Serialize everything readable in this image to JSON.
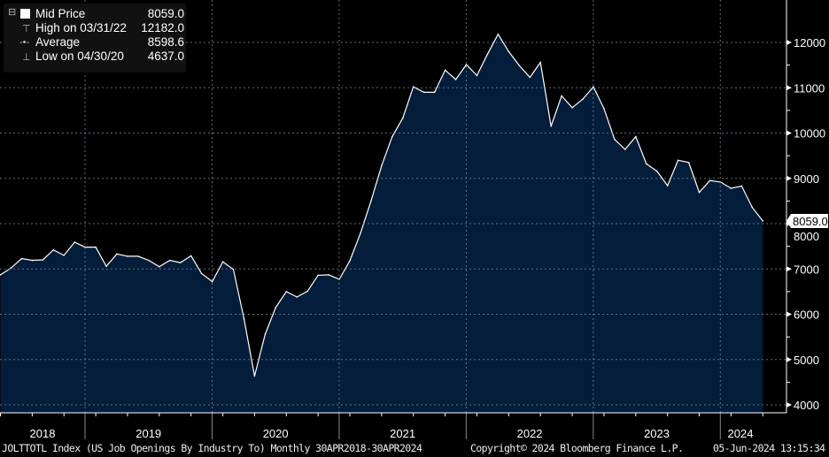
{
  "legend": {
    "series_label": "Mid Price",
    "series_value": "8059.0",
    "high_label": "High on 03/31/22",
    "high_value": "12182.0",
    "avg_label": "Average",
    "avg_value": "8598.6",
    "low_label": "Low on 04/30/20",
    "low_value": "4637.0"
  },
  "footer": {
    "ticker": "JOLTTOTL Index (US Job Openings By Industry To)  Monthly 30APR2018-30APR2024",
    "copyright": "Copyright© 2024 Bloomberg Finance L.P.",
    "timestamp": "05-Jun-2024 13:15:34"
  },
  "colors": {
    "fill": "#031d3a",
    "line": "#ffffff",
    "grid": "#7a8796"
  },
  "chart_data": {
    "type": "area",
    "title": "JOLTTOTL Index (US Job Openings By Industry To)",
    "series": [
      {
        "name": "Mid Price",
        "start": "2018-04",
        "frequency": "monthly",
        "values": [
          6870,
          7020,
          7230,
          7190,
          7200,
          7420,
          7300,
          7590,
          7480,
          7480,
          7060,
          7330,
          7280,
          7280,
          7190,
          7050,
          7190,
          7140,
          7290,
          6900,
          6720,
          7160,
          6990,
          5900,
          4637,
          5560,
          6150,
          6500,
          6380,
          6510,
          6860,
          6870,
          6770,
          7180,
          7790,
          8500,
          9280,
          9920,
          10330,
          11020,
          10900,
          10900,
          11390,
          11180,
          11510,
          11270,
          11740,
          12182,
          11800,
          11490,
          11230,
          11560,
          10150,
          10820,
          10560,
          10750,
          11020,
          10540,
          9860,
          9640,
          9920,
          9320,
          9160,
          8840,
          9400,
          9350,
          8690,
          8950,
          8920,
          8780,
          8830,
          8360,
          8059
        ]
      }
    ],
    "x_tick_labels": [
      "2018",
      "2019",
      "2020",
      "2021",
      "2022",
      "2023",
      "2024"
    ],
    "y_tick_labels": [
      "4000",
      "5000",
      "6000",
      "7000",
      "8000",
      "9000",
      "10000",
      "11000",
      "12000"
    ],
    "ylim": [
      4000,
      12000
    ],
    "last_value_label": "8059.0",
    "grid": true,
    "y_axis_side": "right",
    "legend_placement": "top-left"
  }
}
